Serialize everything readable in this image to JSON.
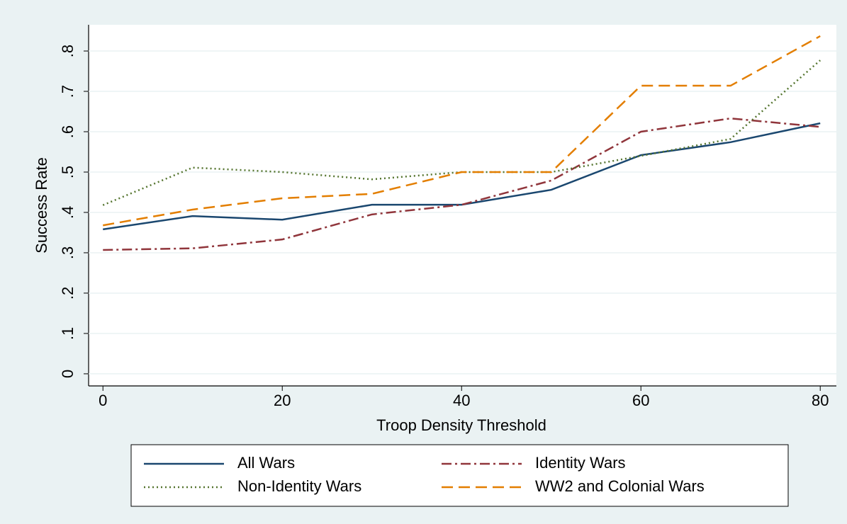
{
  "chart_data": {
    "type": "line",
    "x_label": "Troop Density Threshold",
    "y_label": "Success Rate",
    "x": [
      0,
      10,
      20,
      30,
      40,
      50,
      60,
      70,
      80
    ],
    "xlim": [
      -1.6,
      81.8
    ],
    "xticks": [
      0,
      20,
      40,
      60,
      80
    ],
    "ylim": [
      -0.03,
      0.865
    ],
    "yticks": [
      0,
      {
        "value": 0.1,
        "label": ".1"
      },
      {
        "value": 0.2,
        "label": ".2"
      },
      {
        "value": 0.3,
        "label": ".3"
      },
      {
        "value": 0.4,
        "label": ".4"
      },
      {
        "value": 0.5,
        "label": ".5"
      },
      {
        "value": 0.6,
        "label": ".6"
      },
      {
        "value": 0.7,
        "label": ".7"
      },
      {
        "value": 0.8,
        "label": ".8"
      }
    ],
    "grid": true,
    "series": [
      {
        "name": "All Wars",
        "color": "#1a476f",
        "dash": "solid",
        "values": [
          0.358,
          0.391,
          0.382,
          0.419,
          0.419,
          0.456,
          0.542,
          0.574,
          0.621
        ]
      },
      {
        "name": "Identity Wars",
        "color": "#90353b",
        "dash": "dashdot",
        "values": [
          0.307,
          0.311,
          0.333,
          0.395,
          0.419,
          0.479,
          0.6,
          0.633,
          0.612
        ]
      },
      {
        "name": "Non-Identity Wars",
        "color": "#55752f",
        "dash": "dot",
        "values": [
          0.418,
          0.511,
          0.5,
          0.482,
          0.5,
          0.5,
          0.54,
          0.582,
          0.777
        ]
      },
      {
        "name": "WW2 and Colonial Wars",
        "color": "#e37e00",
        "dash": "dash",
        "values": [
          0.368,
          0.407,
          0.435,
          0.446,
          0.5,
          0.5,
          0.714,
          0.714,
          0.837
        ]
      }
    ]
  }
}
